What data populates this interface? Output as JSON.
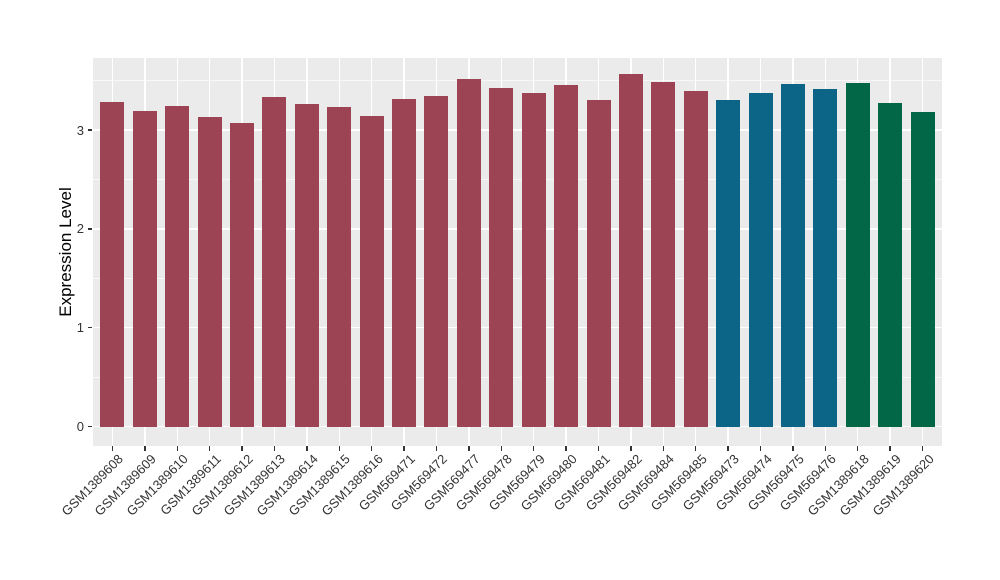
{
  "chart_data": {
    "type": "bar",
    "title": "",
    "xlabel": "",
    "ylabel": "Expression Level",
    "legend": "none",
    "grid": true,
    "panel_bg": "#EBEBEB",
    "grid_color": "#FFFFFF",
    "axis_text_color": "#333333",
    "axis_title_color": "#000000",
    "ylim": [
      0,
      3.73
    ],
    "yticks": [
      "0",
      "1",
      "2",
      "3"
    ],
    "ytick_values": [
      0,
      1,
      2,
      3
    ],
    "yminor_values": [
      0.5,
      1.5,
      2.5,
      3.5
    ],
    "categories": [
      "GSM1389608",
      "GSM1389609",
      "GSM1389610",
      "GSM1389611",
      "GSM1389612",
      "GSM1389613",
      "GSM1389614",
      "GSM1389615",
      "GSM1389616",
      "GSM569471",
      "GSM569472",
      "GSM569477",
      "GSM569478",
      "GSM569479",
      "GSM569480",
      "GSM569481",
      "GSM569482",
      "GSM569484",
      "GSM569485",
      "GSM569473",
      "GSM569474",
      "GSM569475",
      "GSM569476",
      "GSM1389618",
      "GSM1389619",
      "GSM1389620"
    ],
    "values": [
      3.28,
      3.19,
      3.24,
      3.13,
      3.07,
      3.33,
      3.26,
      3.23,
      3.14,
      3.31,
      3.34,
      3.52,
      3.42,
      3.37,
      3.46,
      3.3,
      3.57,
      3.49,
      3.39,
      3.3,
      3.37,
      3.47,
      3.41,
      3.48,
      3.27,
      3.18
    ],
    "groups": [
      "maroon",
      "maroon",
      "maroon",
      "maroon",
      "maroon",
      "maroon",
      "maroon",
      "maroon",
      "maroon",
      "maroon",
      "maroon",
      "maroon",
      "maroon",
      "maroon",
      "maroon",
      "maroon",
      "maroon",
      "maroon",
      "maroon",
      "blue",
      "blue",
      "blue",
      "blue",
      "green",
      "green",
      "green"
    ],
    "group_colors": {
      "maroon": "#9C4354",
      "blue": "#0C6587",
      "green": "#026746"
    }
  }
}
